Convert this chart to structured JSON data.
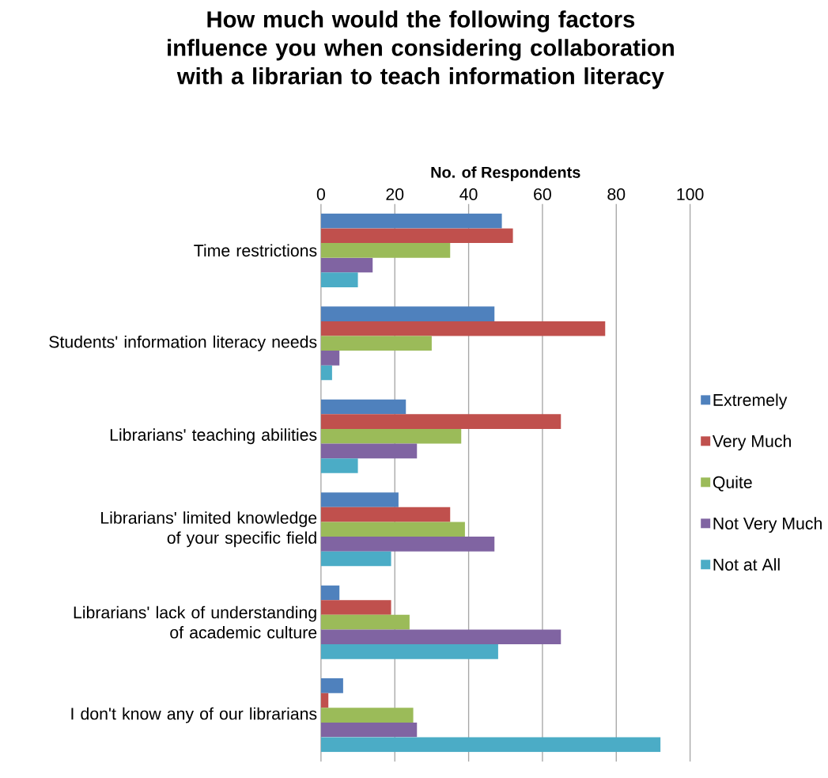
{
  "chart_data": {
    "type": "bar",
    "orientation": "horizontal",
    "title": "How much would the following factors influence you when considering collaboration with a librarian to teach information literacy",
    "xlabel": "No. of Respondents",
    "categories": [
      "Time restrictions",
      "Students' information literacy needs",
      "Librarians' teaching abilities",
      "Librarians' limited knowledge of your specific field",
      "Librarians' lack of understanding of academic culture",
      "I don't know any of our librarians"
    ],
    "series": [
      {
        "name": "Extremely",
        "color": "#4f81bd",
        "values": [
          49,
          47,
          23,
          21,
          5,
          6
        ]
      },
      {
        "name": "Very Much",
        "color": "#c0504d",
        "values": [
          52,
          77,
          65,
          35,
          19,
          2
        ]
      },
      {
        "name": "Quite",
        "color": "#9bbb59",
        "values": [
          35,
          30,
          38,
          39,
          24,
          25
        ]
      },
      {
        "name": "Not Very Much",
        "color": "#8064a2",
        "values": [
          14,
          5,
          26,
          47,
          65,
          26
        ]
      },
      {
        "name": "Not at All",
        "color": "#4bacc6",
        "values": [
          10,
          3,
          10,
          19,
          48,
          92
        ]
      }
    ],
    "xlim": [
      0,
      100
    ],
    "xticks": [
      0,
      20,
      40,
      60,
      80,
      100
    ],
    "grid": "x",
    "legend": "right"
  }
}
